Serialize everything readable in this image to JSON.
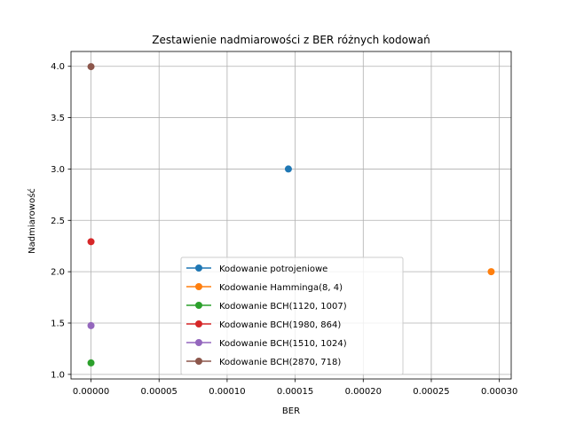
{
  "chart_data": {
    "type": "scatter",
    "title": "Zestawienie nadmiarowości z BER różnych kodowań",
    "xlabel": "BER",
    "ylabel": "Nadmiarowość",
    "xlim": [
      -1.47e-05,
      0.0003087
    ],
    "ylim": [
      0.9555,
      4.1445
    ],
    "xticks": [
      0,
      5e-05,
      0.0001,
      0.00015,
      0.0002,
      0.00025,
      0.0003
    ],
    "xtick_labels": [
      "0.00000",
      "0.00005",
      "0.00010",
      "0.00015",
      "0.00020",
      "0.00025",
      "0.00030"
    ],
    "yticks": [
      1.0,
      1.5,
      2.0,
      2.5,
      3.0,
      3.5,
      4.0
    ],
    "ytick_labels": [
      "1.0",
      "1.5",
      "2.0",
      "2.5",
      "3.0",
      "3.5",
      "4.0"
    ],
    "grid": true,
    "legend_position": "bottom-center",
    "series": [
      {
        "name": "Kodowanie potrojeniowe",
        "color": "#1f77b4",
        "x": [
          0.000145
        ],
        "y": [
          3.0
        ]
      },
      {
        "name": "Kodowanie Hamminga(8, 4)",
        "color": "#ff7f0e",
        "x": [
          0.000294
        ],
        "y": [
          2.0
        ]
      },
      {
        "name": "Kodowanie BCH(1120, 1007)",
        "color": "#2ca02c",
        "x": [
          0.0
        ],
        "y": [
          1.112
        ]
      },
      {
        "name": "Kodowanie BCH(1980, 864)",
        "color": "#d62728",
        "x": [
          0.0
        ],
        "y": [
          2.292
        ]
      },
      {
        "name": "Kodowanie BCH(1510, 1024)",
        "color": "#9467bd",
        "x": [
          0.0
        ],
        "y": [
          1.475
        ]
      },
      {
        "name": "Kodowanie BCH(2870, 718)",
        "color": "#8c564b",
        "x": [
          0.0
        ],
        "y": [
          3.997
        ]
      }
    ]
  }
}
